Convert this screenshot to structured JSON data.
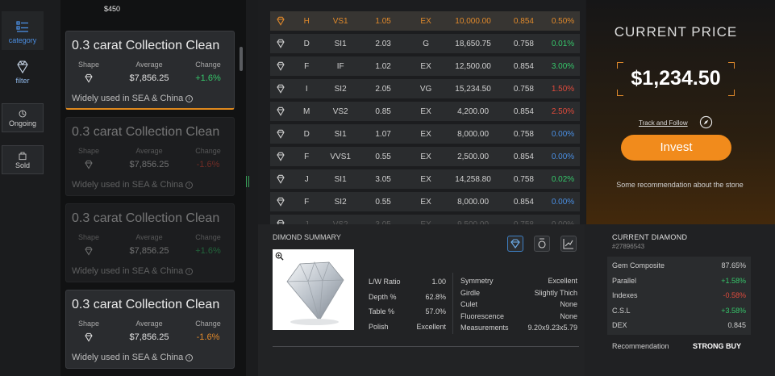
{
  "nav": {
    "items": [
      {
        "label": "category"
      },
      {
        "label": "filter"
      },
      {
        "label": "Ongoing"
      },
      {
        "label": "Sold"
      }
    ]
  },
  "list": {
    "top_value": "$450",
    "labels": {
      "shape": "Shape",
      "average": "Average",
      "change": "Change"
    },
    "cards": [
      {
        "title": "0.3 carat Collection Clean",
        "average": "$7,856.25",
        "change": "+1.6%",
        "note": "Widely used in SEA & China"
      },
      {
        "title": "0.3 carat Collection Clean",
        "average": "$7,856.25",
        "change": "-1.6%",
        "note": "Widely used in SEA & China"
      },
      {
        "title": "0.3 carat Collection Clean",
        "average": "$7,856.25",
        "change": "+1.6%",
        "note": "Widely used in SEA & China"
      },
      {
        "title": "0.3 carat Collection Clean",
        "average": "$7,856.25",
        "change": "-1.6%",
        "note": "Widely used in SEA & China"
      }
    ]
  },
  "table": {
    "rows": [
      {
        "color": "H",
        "clarity": "VS1",
        "carat": "1.05",
        "cut": "EX",
        "price": "10,000.00",
        "ratio": "0.854",
        "change": "0.50%",
        "trend": "orange"
      },
      {
        "color": "D",
        "clarity": "SI1",
        "carat": "2.03",
        "cut": "G",
        "price": "18,650.75",
        "ratio": "0.758",
        "change": "0.01%",
        "trend": "up"
      },
      {
        "color": "F",
        "clarity": "IF",
        "carat": "1.02",
        "cut": "EX",
        "price": "12,500.00",
        "ratio": "0.854",
        "change": "3.00%",
        "trend": "up"
      },
      {
        "color": "I",
        "clarity": "SI2",
        "carat": "2.05",
        "cut": "VG",
        "price": "15,234.50",
        "ratio": "0.758",
        "change": "1.50%",
        "trend": "down"
      },
      {
        "color": "M",
        "clarity": "VS2",
        "carat": "0.85",
        "cut": "EX",
        "price": "4,200.00",
        "ratio": "0.854",
        "change": "2.50%",
        "trend": "down"
      },
      {
        "color": "D",
        "clarity": "SI1",
        "carat": "1.07",
        "cut": "EX",
        "price": "8,000.00",
        "ratio": "0.758",
        "change": "0.00%",
        "trend": "flat"
      },
      {
        "color": "F",
        "clarity": "VVS1",
        "carat": "0.55",
        "cut": "EX",
        "price": "2,500.00",
        "ratio": "0.854",
        "change": "0.00%",
        "trend": "flat"
      },
      {
        "color": "J",
        "clarity": "SI1",
        "carat": "3.05",
        "cut": "EX",
        "price": "14,258.80",
        "ratio": "0.758",
        "change": "0.02%",
        "trend": "up"
      },
      {
        "color": "F",
        "clarity": "SI2",
        "carat": "0.55",
        "cut": "EX",
        "price": "8,000.00",
        "ratio": "0.854",
        "change": "0.00%",
        "trend": "flat"
      },
      {
        "color": "J",
        "clarity": "VS2",
        "carat": "3.05",
        "cut": "EX",
        "price": "9,500.00",
        "ratio": "0.758",
        "change": "0.00%",
        "trend": "fade"
      }
    ]
  },
  "price": {
    "title": "CURRENT PRICE",
    "value": "$1,234.50",
    "track_label": "Track and Follow",
    "invest_label": "Invest",
    "note": "Some recommendation about the stone"
  },
  "summary": {
    "title": "DIMOND SUMMARY",
    "left_specs": [
      {
        "key": "L/W Ratio",
        "value": "1.00"
      },
      {
        "key": "Depth %",
        "value": "62.8%"
      },
      {
        "key": "Table %",
        "value": "57.0%"
      },
      {
        "key": "Polish",
        "value": "Excellent"
      }
    ],
    "right_specs": [
      {
        "key": "Symmetry",
        "value": "Excellent"
      },
      {
        "key": "Girdle",
        "value": "Slightly Thich"
      },
      {
        "key": "Culet",
        "value": "None"
      },
      {
        "key": "Fluorescence",
        "value": "None"
      },
      {
        "key": "Measurements",
        "value": "9.20x9.23x5.79"
      }
    ]
  },
  "current": {
    "title": "CURRENT DIAMOND",
    "id": "#27896543",
    "stats": [
      {
        "key": "Gem Composite",
        "value": "87.65%",
        "trend": "flat"
      },
      {
        "key": "Parallel",
        "value": "+1.58%",
        "trend": "up"
      },
      {
        "key": "Indexes",
        "value": "-0.58%",
        "trend": "down"
      },
      {
        "key": "C.S.L",
        "value": "+3.58%",
        "trend": "up"
      },
      {
        "key": "DEX",
        "value": "0.845",
        "trend": "flat"
      }
    ],
    "recommendation_label": "Recommendation",
    "recommendation_value": "STRONG BUY"
  },
  "colors": {
    "accent": "#f18b1c",
    "positive": "#36c66a",
    "negative": "#e04b3c",
    "flat": "#4a8fe3"
  }
}
